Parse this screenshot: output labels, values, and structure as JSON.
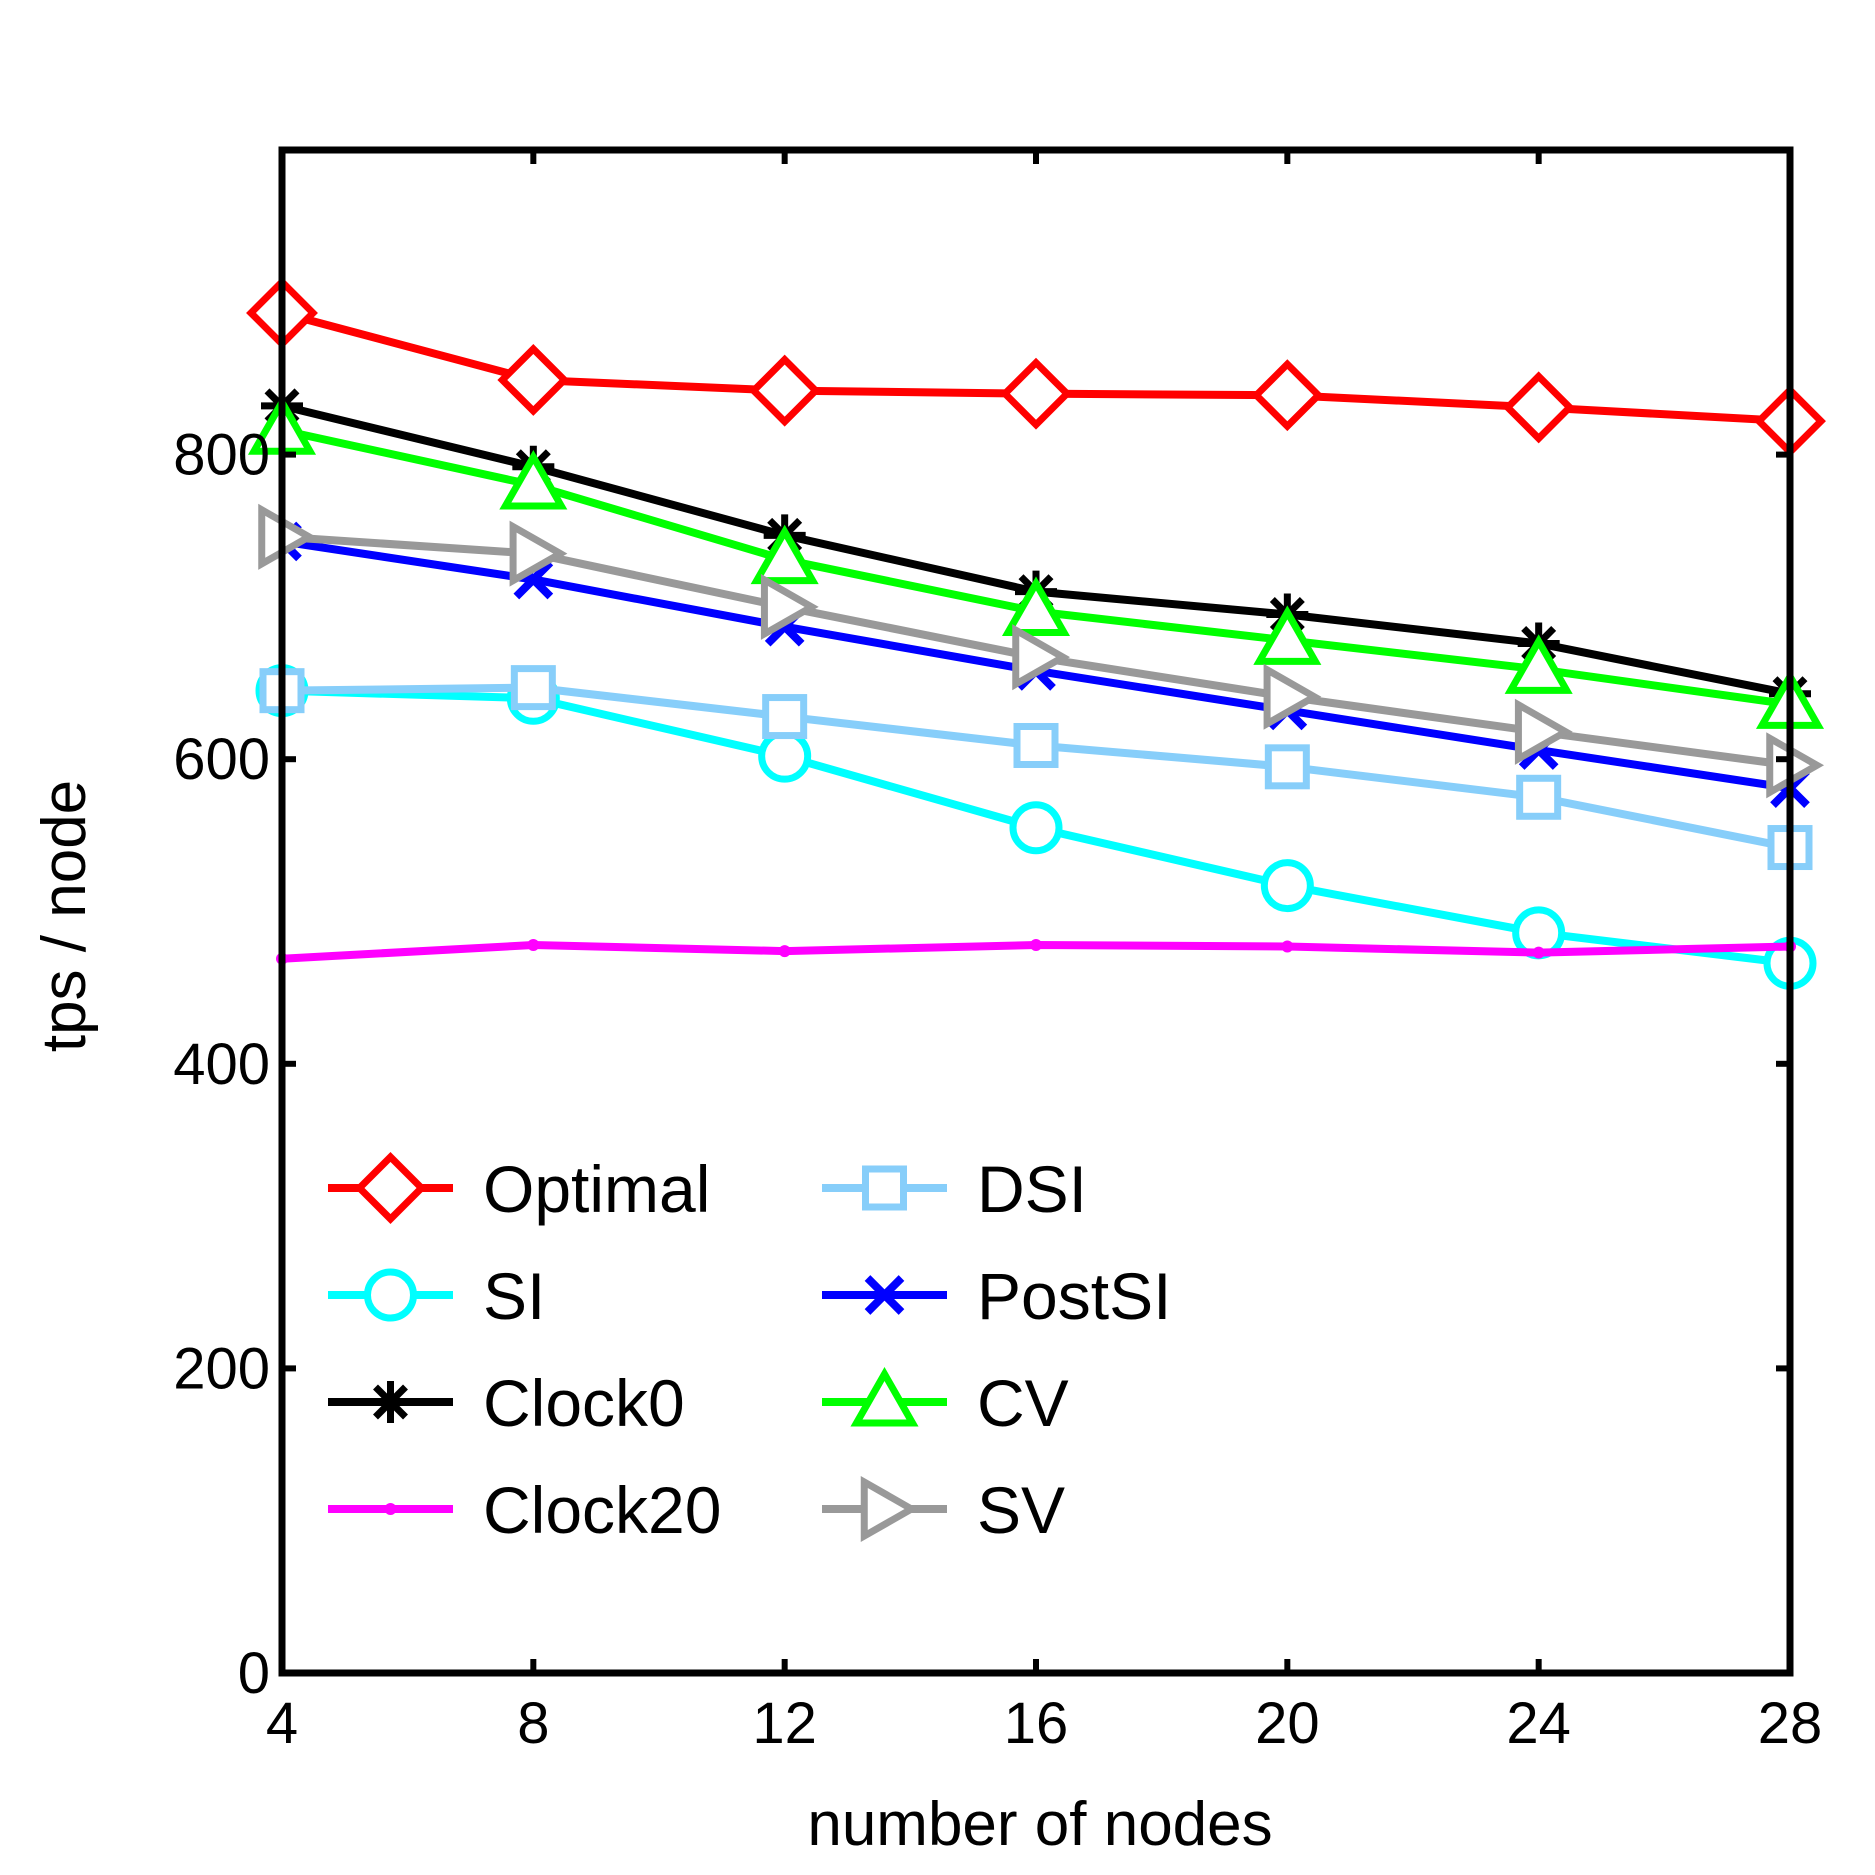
{
  "chart_data": {
    "type": "line",
    "title": "",
    "xlabel": "number of nodes",
    "ylabel": "tps / node",
    "x": [
      4,
      8,
      12,
      16,
      20,
      24,
      28
    ],
    "xlim": [
      4,
      28
    ],
    "ylim": [
      0,
      1000
    ],
    "xticks": [
      "4",
      "8",
      "12",
      "16",
      "20",
      "24",
      "28"
    ],
    "yticks": [
      "0",
      "200",
      "400",
      "600",
      "800"
    ],
    "ytick_values": [
      0,
      200,
      400,
      600,
      800
    ],
    "grid": false,
    "legend_position": "bottom-left, two columns",
    "series": [
      {
        "name": "Optimal",
        "color": "#ff0000",
        "marker": "diamond",
        "values": [
          893,
          849,
          842,
          840,
          839,
          831,
          822
        ]
      },
      {
        "name": "SI",
        "color": "#00ffff",
        "marker": "circle",
        "values": [
          645,
          640,
          602,
          555,
          517,
          486,
          466
        ]
      },
      {
        "name": "Clock0",
        "color": "#000000",
        "marker": "asterisk",
        "values": [
          832,
          792,
          747,
          710,
          695,
          676,
          643
        ]
      },
      {
        "name": "Clock20",
        "color": "#ff00ff",
        "marker": "dot",
        "values": [
          469,
          478,
          474,
          478,
          477,
          473,
          477
        ]
      },
      {
        "name": "DSI",
        "color": "#87cefa",
        "marker": "square",
        "values": [
          645,
          647,
          628,
          609,
          595,
          575,
          542
        ]
      },
      {
        "name": "PostSI",
        "color": "#0000ff",
        "marker": "x",
        "values": [
          743,
          718,
          687,
          658,
          632,
          606,
          581
        ]
      },
      {
        "name": "CV",
        "color": "#00ff00",
        "marker": "triangle-up",
        "values": [
          816,
          780,
          731,
          697,
          678,
          659,
          636
        ]
      },
      {
        "name": "SV",
        "color": "#999999",
        "marker": "triangle-right",
        "values": [
          746,
          735,
          700,
          667,
          641,
          618,
          596
        ]
      }
    ]
  }
}
